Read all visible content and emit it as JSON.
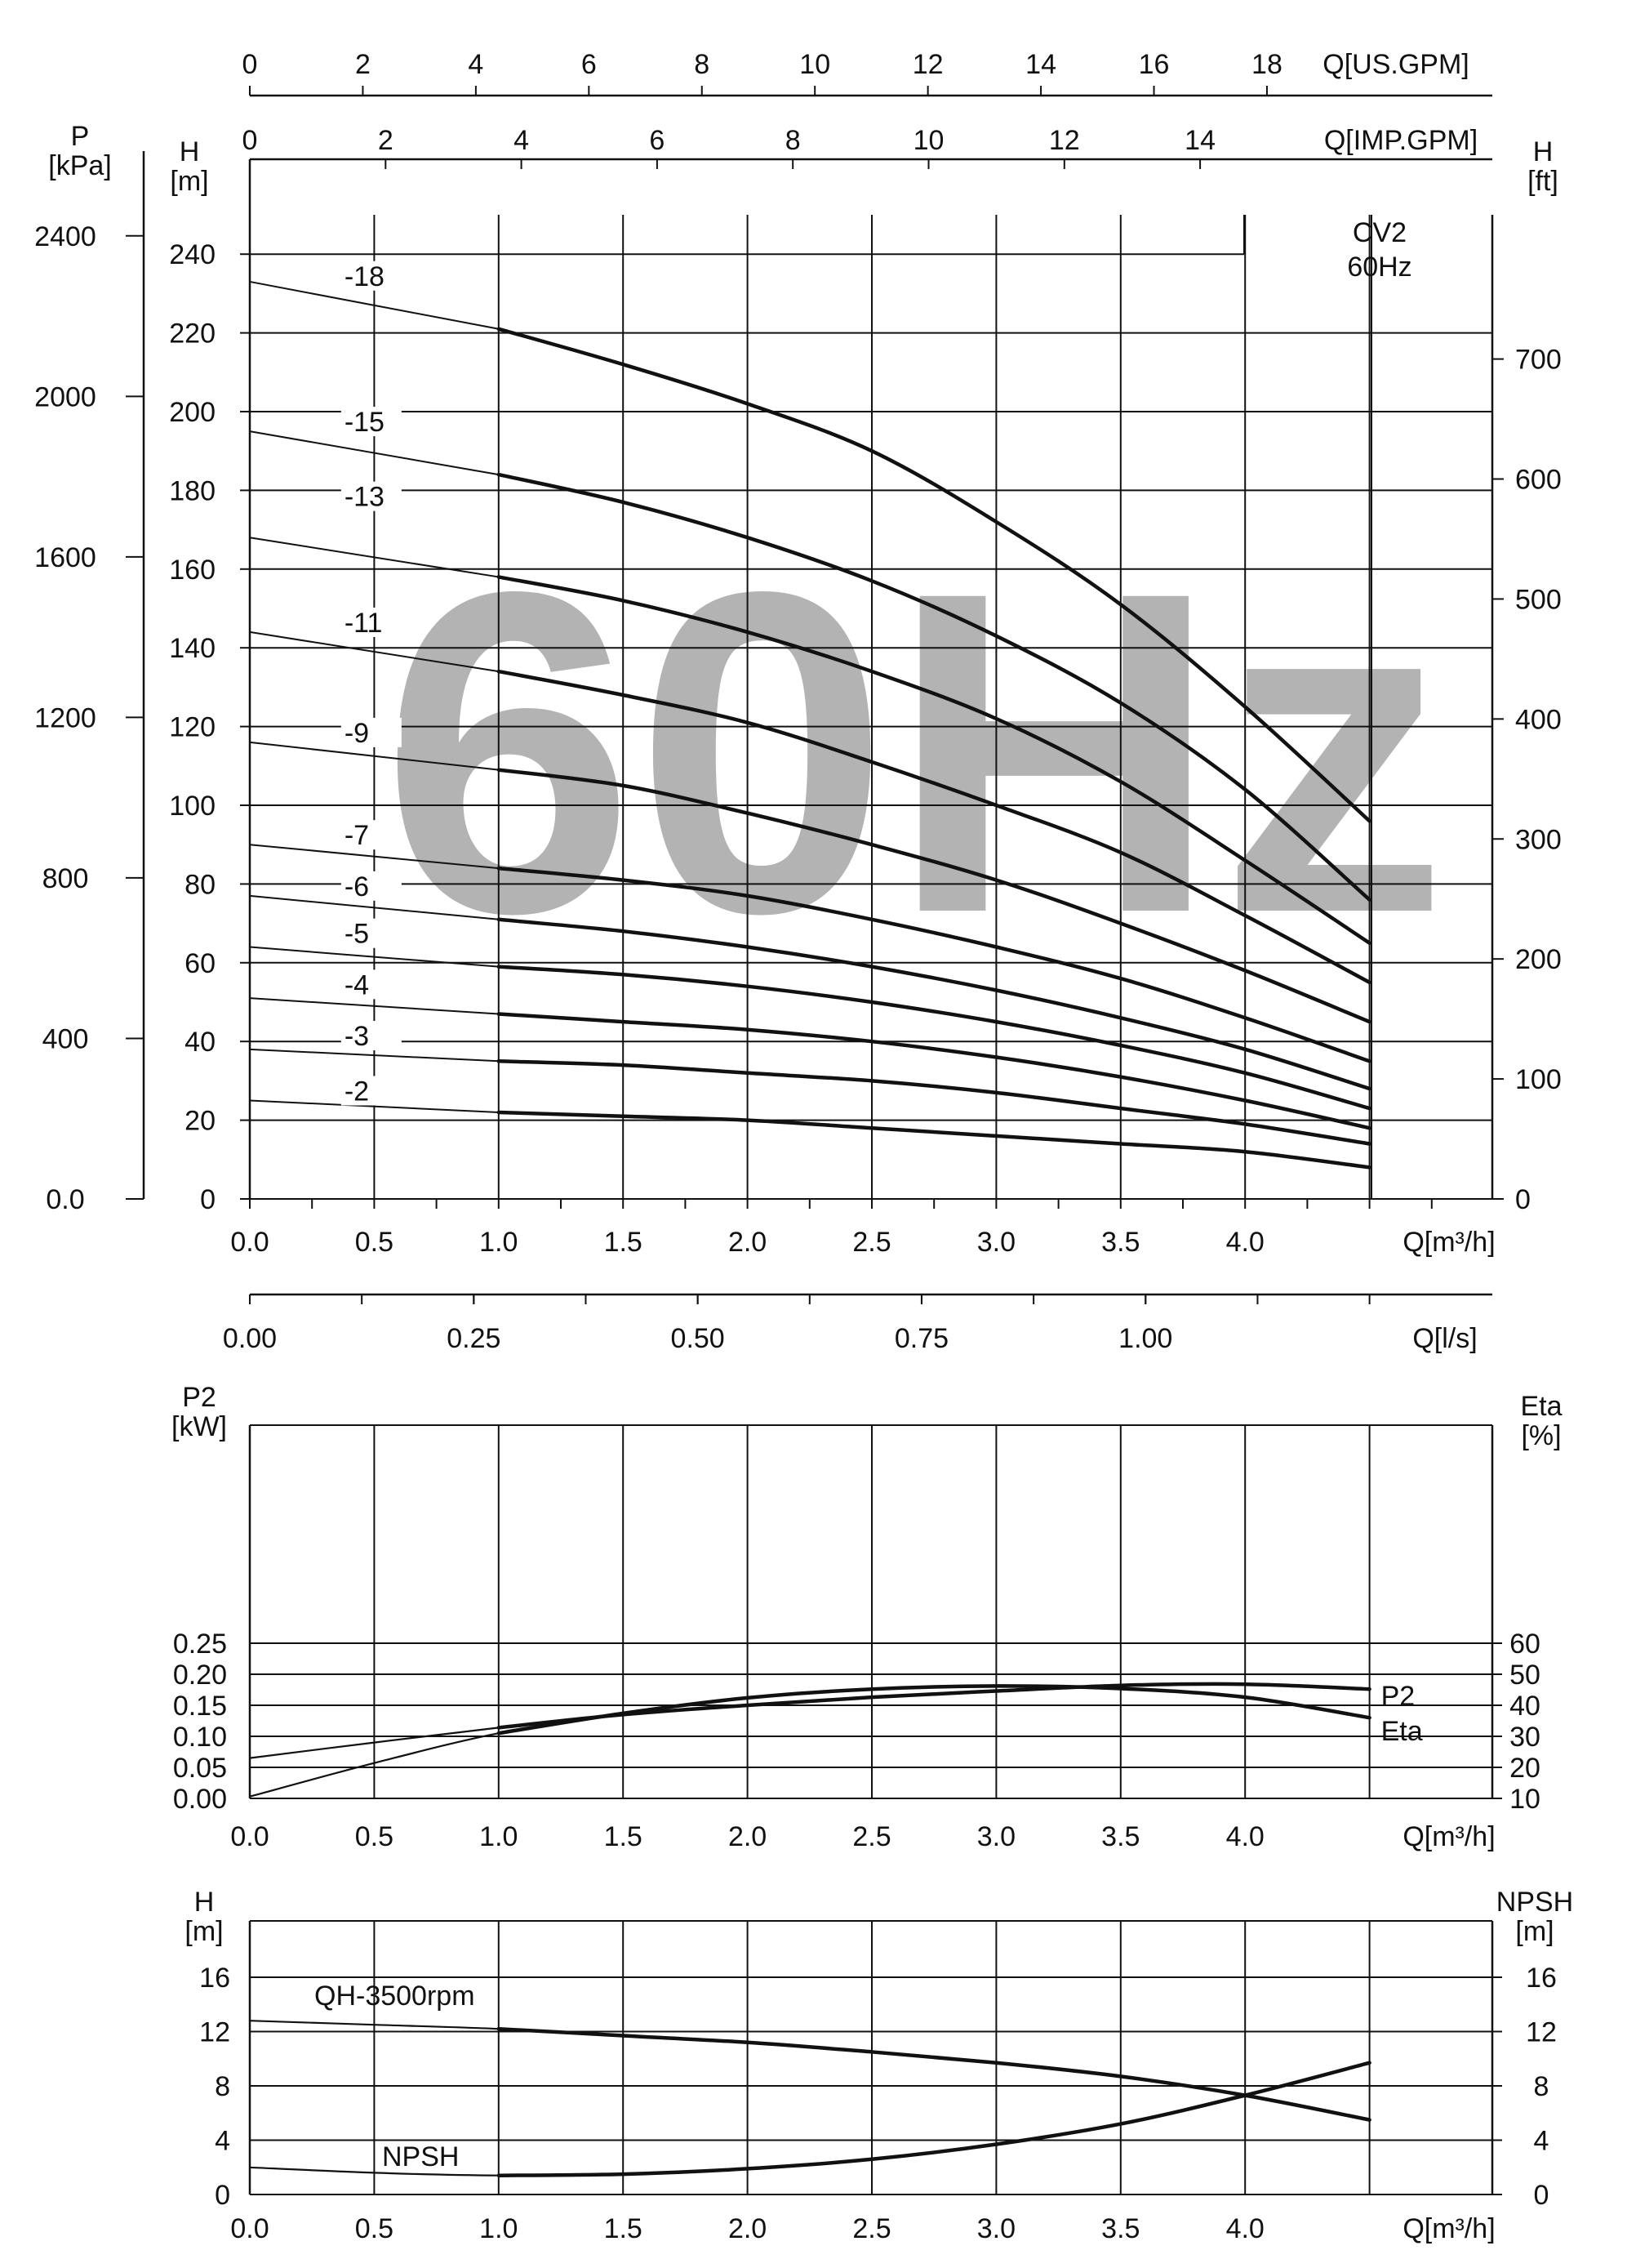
{
  "legend_box": {
    "model": "CV2",
    "frequency": "60Hz"
  },
  "watermark": "60Hz",
  "chart_data": [
    {
      "type": "line",
      "title": "",
      "units": {
        "q_us": "Q[US.GPM]",
        "q_imp": "Q[IMP.GPM]",
        "pressure": "P\n[kPa]",
        "head_m": "H\n[m]",
        "head_ft": "H\n[ft]",
        "q_m3h": "Q[m³/h]",
        "q_ls": "Q[l/s]"
      },
      "x_ticks": [
        "0.0",
        "0.5",
        "1.0",
        "1.5",
        "2.0",
        "2.5",
        "3.0",
        "3.5",
        "4.0"
      ],
      "us_gpm_ticks": [
        "0",
        "2",
        "4",
        "6",
        "8",
        "10",
        "12",
        "14",
        "16",
        "18"
      ],
      "imp_gpm_ticks": [
        "0",
        "2",
        "4",
        "6",
        "8",
        "10",
        "12",
        "14"
      ],
      "ls_ticks": [
        "0.00",
        "0.25",
        "0.50",
        "0.75",
        "1.00"
      ],
      "y_m_ticks": [
        "0",
        "20",
        "40",
        "60",
        "80",
        "100",
        "120",
        "140",
        "160",
        "180",
        "200",
        "220",
        "240"
      ],
      "y_kpa_ticks": [
        "0.0",
        "400",
        "800",
        "1200",
        "1600",
        "2000",
        "2400"
      ],
      "y_ft_ticks": [
        "0",
        "100",
        "200",
        "300",
        "400",
        "500",
        "600",
        "700"
      ],
      "xlim": [
        0,
        5
      ],
      "ylim": [
        0,
        250
      ],
      "series": [
        {
          "name": "-18",
          "x": [
            1.0,
            1.5,
            2.0,
            2.5,
            3.0,
            3.5,
            4.0,
            4.5
          ],
          "y": [
            221,
            212,
            202,
            190,
            172,
            151,
            125,
            96
          ]
        },
        {
          "name": "-15",
          "x": [
            1.0,
            1.5,
            2.0,
            2.5,
            3.0,
            3.5,
            4.0,
            4.5
          ],
          "y": [
            184,
            177,
            168,
            157,
            143,
            126,
            104,
            76
          ]
        },
        {
          "name": "-13",
          "x": [
            1.0,
            1.5,
            2.0,
            2.5,
            3.0,
            3.5,
            4.0,
            4.5
          ],
          "y": [
            158,
            152,
            144,
            134,
            122,
            106,
            86,
            65
          ]
        },
        {
          "name": "-11",
          "x": [
            1.0,
            1.5,
            2.0,
            2.5,
            3.0,
            3.5,
            4.0,
            4.5
          ],
          "y": [
            134,
            128,
            121,
            111,
            100,
            88,
            72,
            55
          ]
        },
        {
          "name": "-9",
          "x": [
            1.0,
            1.5,
            2.0,
            2.5,
            3.0,
            3.5,
            4.0,
            4.5
          ],
          "y": [
            109,
            105,
            98,
            90,
            81,
            70,
            58,
            45
          ]
        },
        {
          "name": "-7",
          "x": [
            1.0,
            1.5,
            2.0,
            2.5,
            3.0,
            3.5,
            4.0,
            4.5
          ],
          "y": [
            84,
            81,
            77,
            71,
            64,
            56,
            46,
            35
          ]
        },
        {
          "name": "-6",
          "x": [
            1.0,
            1.5,
            2.0,
            2.5,
            3.0,
            3.5,
            4.0,
            4.5
          ],
          "y": [
            71,
            68,
            64,
            59,
            53,
            46,
            38,
            28
          ]
        },
        {
          "name": "-5",
          "x": [
            1.0,
            1.5,
            2.0,
            2.5,
            3.0,
            3.5,
            4.0,
            4.5
          ],
          "y": [
            59,
            57,
            54,
            50,
            45,
            39,
            32,
            23
          ]
        },
        {
          "name": "-4",
          "x": [
            1.0,
            1.5,
            2.0,
            2.5,
            3.0,
            3.5,
            4.0,
            4.5
          ],
          "y": [
            47,
            45,
            43,
            40,
            36,
            31,
            25,
            18
          ]
        },
        {
          "name": "-3",
          "x": [
            1.0,
            1.5,
            2.0,
            2.5,
            3.0,
            3.5,
            4.0,
            4.5
          ],
          "y": [
            35,
            34,
            32,
            30,
            27,
            23,
            19,
            14
          ]
        },
        {
          "name": "-2",
          "x": [
            1.0,
            1.5,
            2.0,
            2.5,
            3.0,
            3.5,
            4.0,
            4.5
          ],
          "y": [
            22,
            21,
            20,
            18,
            16,
            14,
            12,
            8
          ]
        }
      ],
      "thin_prefix": {
        "-18": [
          0,
          233
        ],
        "-15": [
          0,
          195
        ],
        "-13": [
          0,
          168
        ],
        "-11": [
          0,
          144
        ],
        "-9": [
          0,
          116
        ],
        "-7": [
          0,
          90
        ],
        "-6": [
          0,
          77
        ],
        "-5": [
          0,
          64
        ],
        "-4": [
          0,
          51
        ],
        "-3": [
          0,
          38
        ],
        "-2": [
          0,
          25
        ]
      },
      "grid": true
    },
    {
      "type": "line",
      "title": "",
      "units": {
        "p2": "P2\n[kW]",
        "eta": "Eta\n[%]",
        "q_m3h": "Q[m³/h]"
      },
      "x_ticks": [
        "0.0",
        "0.5",
        "1.0",
        "1.5",
        "2.0",
        "2.5",
        "3.0",
        "3.5",
        "4.0"
      ],
      "p2_ticks": [
        "0.00",
        "0.05",
        "0.10",
        "0.15",
        "0.20",
        "0.25"
      ],
      "eta_ticks": [
        "10",
        "20",
        "30",
        "40",
        "50",
        "60"
      ],
      "xlim": [
        0,
        5
      ],
      "ylim_p2": [
        0,
        0.3
      ],
      "series": [
        {
          "name": "P2",
          "x": [
            0.0,
            0.5,
            1.0,
            1.5,
            2.0,
            2.5,
            3.0,
            3.5,
            4.0,
            4.5
          ],
          "y": [
            0.065,
            0.09,
            0.114,
            0.135,
            0.15,
            0.163,
            0.173,
            0.182,
            0.184,
            0.176
          ]
        },
        {
          "name": "Eta",
          "x": [
            0.0,
            0.5,
            1.0,
            1.5,
            2.0,
            2.5,
            3.0,
            3.5,
            4.0,
            4.5
          ],
          "y": [
            0.003,
            0.057,
            0.105,
            0.137,
            0.162,
            0.176,
            0.181,
            0.177,
            0.163,
            0.13
          ]
        }
      ],
      "grid": true
    },
    {
      "type": "line",
      "title": "",
      "units": {
        "h": "H\n[m]",
        "npsh": "NPSH\n[m]",
        "q_m3h": "Q[m³/h]"
      },
      "x_ticks": [
        "0.0",
        "0.5",
        "1.0",
        "1.5",
        "2.0",
        "2.5",
        "3.0",
        "3.5",
        "4.0"
      ],
      "y_ticks": [
        "0",
        "4",
        "8",
        "12",
        "16"
      ],
      "xlim": [
        0,
        5
      ],
      "ylim": [
        0,
        20
      ],
      "series": [
        {
          "name": "QH-3500rpm",
          "x": [
            0.0,
            0.5,
            1.0,
            1.5,
            2.0,
            2.5,
            3.0,
            3.5,
            4.0,
            4.5
          ],
          "y": [
            12.8,
            12.5,
            12.2,
            11.7,
            11.2,
            10.5,
            9.7,
            8.7,
            7.3,
            5.5
          ]
        },
        {
          "name": "NPSH",
          "x": [
            0.0,
            0.5,
            1.0,
            1.5,
            2.0,
            2.5,
            3.0,
            3.5,
            4.0,
            4.5
          ],
          "y": [
            2.0,
            1.6,
            1.4,
            1.5,
            1.9,
            2.6,
            3.7,
            5.2,
            7.3,
            9.7
          ]
        }
      ],
      "grid": true
    }
  ]
}
